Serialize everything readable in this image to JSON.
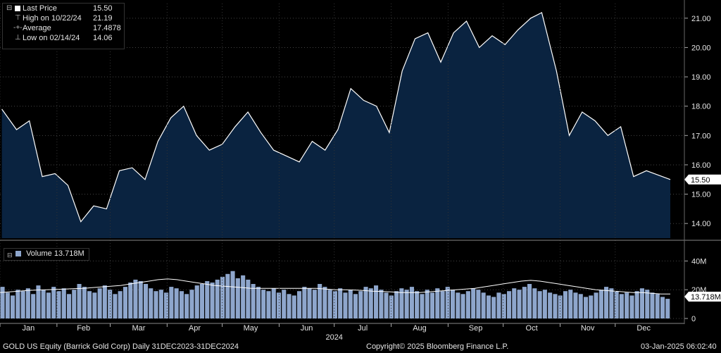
{
  "legend": {
    "last": {
      "label": "Last Price",
      "value": "15.50"
    },
    "high": {
      "label": "High on 10/22/24",
      "value": "21.19"
    },
    "avg": {
      "label": "Average",
      "value": "17.4878"
    },
    "low": {
      "label": "Low on 02/14/24",
      "value": "14.06"
    }
  },
  "volume_legend": {
    "label": "Volume",
    "value": "13.718M"
  },
  "footer": {
    "left": "GOLD US Equity (Barrick Gold Corp)  Daily 31DEC2023-31DEC2024",
    "center": "Copyright© 2025 Bloomberg Finance L.P.",
    "right": "03-Jan-2025 06:02:40"
  },
  "colors": {
    "price_fill": "#0a2340",
    "price_line": "#ffffff",
    "volume_bar": "#8ea6cc",
    "volume_ma": "#ffffff",
    "badge": "#ffffff"
  },
  "chart_data": [
    {
      "type": "area",
      "series_label": "Last Price",
      "ylim": [
        13.5,
        21.5
      ],
      "yticks": [
        "14.00",
        "15.00",
        "16.00",
        "17.00",
        "18.00",
        "19.00",
        "20.00",
        "21.00"
      ],
      "last_value_label": "15.50",
      "x": [
        "2024-01-02",
        "2024-01-10",
        "2024-01-17",
        "2024-01-24",
        "2024-01-31",
        "2024-02-07",
        "2024-02-14",
        "2024-02-21",
        "2024-02-28",
        "2024-03-06",
        "2024-03-13",
        "2024-03-20",
        "2024-03-27",
        "2024-04-03",
        "2024-04-10",
        "2024-04-17",
        "2024-04-24",
        "2024-05-01",
        "2024-05-08",
        "2024-05-15",
        "2024-05-22",
        "2024-05-29",
        "2024-06-05",
        "2024-06-12",
        "2024-06-19",
        "2024-06-26",
        "2024-07-03",
        "2024-07-10",
        "2024-07-17",
        "2024-07-24",
        "2024-07-31",
        "2024-08-07",
        "2024-08-14",
        "2024-08-21",
        "2024-08-28",
        "2024-09-04",
        "2024-09-11",
        "2024-09-18",
        "2024-09-25",
        "2024-10-02",
        "2024-10-09",
        "2024-10-16",
        "2024-10-22",
        "2024-10-30",
        "2024-11-06",
        "2024-11-13",
        "2024-11-20",
        "2024-11-27",
        "2024-12-04",
        "2024-12-11",
        "2024-12-18",
        "2024-12-31"
      ],
      "values": [
        17.9,
        17.2,
        17.5,
        15.6,
        15.7,
        15.3,
        14.06,
        14.6,
        14.5,
        15.8,
        15.9,
        15.5,
        16.8,
        17.6,
        18.0,
        17.0,
        16.5,
        16.7,
        17.3,
        17.8,
        17.1,
        16.5,
        16.3,
        16.1,
        16.8,
        16.5,
        17.2,
        18.6,
        18.2,
        18.0,
        17.1,
        19.2,
        20.3,
        20.5,
        19.5,
        20.5,
        20.9,
        20.0,
        20.4,
        20.1,
        20.6,
        21.0,
        21.19,
        19.2,
        17.0,
        17.8,
        17.5,
        17.0,
        17.3,
        15.6,
        15.8,
        15.5
      ]
    },
    {
      "type": "bar",
      "series_label": "Volume",
      "overlay": "moving average",
      "ylim": [
        0,
        50
      ],
      "yticks": [
        "0",
        "20M",
        "40M"
      ],
      "last_value_label": "13.718M",
      "values": [
        22,
        18,
        16,
        20,
        19,
        21,
        17,
        23,
        20,
        18,
        22,
        19,
        21,
        17,
        20,
        24,
        22,
        19,
        18,
        21,
        23,
        20,
        17,
        19,
        22,
        25,
        27,
        26,
        24,
        21,
        19,
        20,
        18,
        22,
        21,
        19,
        17,
        20,
        23,
        24,
        26,
        25,
        27,
        29,
        31,
        33,
        28,
        30,
        27,
        24,
        22,
        20,
        19,
        21,
        18,
        20,
        17,
        16,
        19,
        22,
        21,
        20,
        24,
        22,
        20,
        19,
        21,
        18,
        20,
        17,
        19,
        22,
        21,
        23,
        20,
        18,
        16,
        19,
        21,
        20,
        22,
        19,
        17,
        20,
        18,
        21,
        19,
        22,
        20,
        18,
        17,
        19,
        21,
        20,
        18,
        16,
        15,
        18,
        17,
        19,
        21,
        20,
        22,
        24,
        21,
        19,
        20,
        18,
        17,
        16,
        19,
        20,
        18,
        17,
        15,
        16,
        18,
        20,
        22,
        21,
        19,
        17,
        18,
        16,
        19,
        21,
        20,
        18,
        17,
        15,
        13.7
      ],
      "ma_values": [
        18,
        18.5,
        19,
        19.5,
        19.8,
        20,
        20.2,
        20.5,
        20.8,
        21,
        21.5,
        22,
        22.5,
        23,
        24,
        25,
        26,
        27,
        27.5,
        27,
        26,
        25,
        24,
        23,
        22.5,
        22,
        21.5,
        21,
        21,
        21,
        21,
        21,
        21,
        21,
        21,
        20.5,
        20,
        20,
        19.8,
        19.5,
        19,
        18.8,
        18.5,
        18,
        18,
        18,
        18.5,
        19,
        19.5,
        20,
        20.5,
        21,
        22,
        23,
        24,
        25,
        26,
        26.5,
        26,
        25,
        24,
        23,
        22,
        21,
        20,
        19.5,
        19,
        18.5,
        18,
        18,
        17.5,
        17,
        17
      ]
    }
  ],
  "x_axis": {
    "months": [
      "Jan",
      "Feb",
      "Mar",
      "Apr",
      "May",
      "Jun",
      "Jul",
      "Aug",
      "Sep",
      "Oct",
      "Nov",
      "Dec"
    ],
    "year": "2024"
  }
}
